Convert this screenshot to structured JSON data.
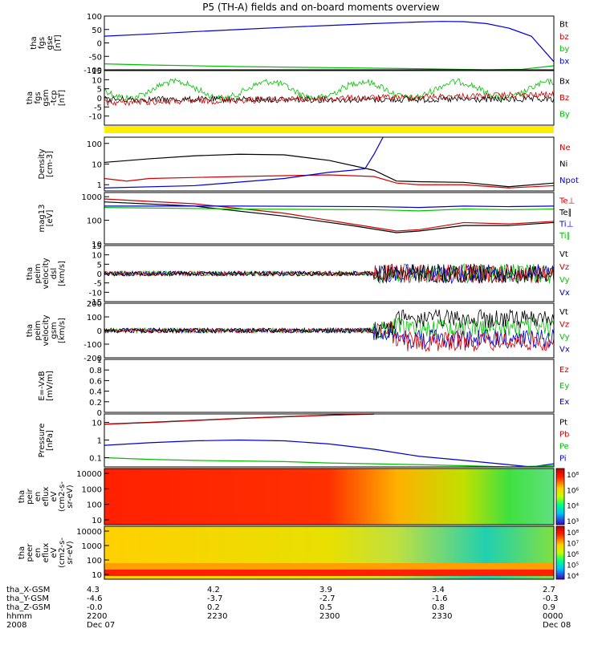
{
  "title": "P5 (TH-A) fields and on-board moments overview",
  "chart_data": [
    {
      "type": "line",
      "panel": "fgs-gse",
      "ylabel": [
        "tha",
        "fgs",
        "gse",
        "[nT]"
      ],
      "yticks": [
        100,
        50,
        0,
        -50,
        -100
      ],
      "ylim": [
        -100,
        100
      ],
      "legend": [
        {
          "name": "Bt",
          "color": "#000000"
        },
        {
          "name": "bz",
          "color": "#d00000"
        },
        {
          "name": "by",
          "color": "#00c000"
        },
        {
          "name": "bx",
          "color": "#0000d0"
        }
      ],
      "series": [
        {
          "name": "bx",
          "color": "#0000d0",
          "x": [
            0,
            0.1,
            0.2,
            0.3,
            0.4,
            0.5,
            0.6,
            0.7,
            0.75,
            0.8,
            0.85,
            0.9,
            0.95,
            1.0
          ],
          "values": [
            25,
            33,
            42,
            50,
            58,
            65,
            72,
            78,
            80,
            79,
            72,
            55,
            25,
            -70
          ]
        },
        {
          "name": "by",
          "color": "#00c000",
          "x": [
            0,
            0.1,
            0.3,
            0.5,
            0.7,
            0.85,
            0.93,
            1.0
          ],
          "values": [
            -78,
            -82,
            -88,
            -92,
            -96,
            -100,
            -98,
            -85
          ]
        }
      ]
    },
    {
      "type": "line",
      "panel": "fgs-gsm",
      "ylabel": [
        "tha",
        "fgs",
        "gsm",
        "-tcp",
        "[nT]"
      ],
      "yticks": [
        15,
        10,
        5,
        0,
        -5,
        -10
      ],
      "ylim": [
        -15,
        15
      ],
      "legend": [
        {
          "name": "Bx",
          "color": "#000000"
        },
        {
          "name": "Bz",
          "color": "#d00000"
        },
        {
          "name": "By",
          "color": "#00c000"
        }
      ]
    },
    {
      "type": "bar",
      "panel": "mode-bar",
      "color": "#ffee00"
    },
    {
      "type": "line",
      "panel": "density",
      "ylabel": [
        "Density",
        "[cm-3]"
      ],
      "yticks": [
        100,
        10,
        1
      ],
      "scale": "log",
      "ylim": [
        0.5,
        200
      ],
      "legend": [
        {
          "name": "Ne",
          "color": "#d00000"
        },
        {
          "name": "Ni",
          "color": "#000000"
        },
        {
          "name": "Npot",
          "color": "#0000d0"
        }
      ],
      "series": [
        {
          "name": "Ni",
          "color": "#000000",
          "x": [
            0,
            0.1,
            0.2,
            0.3,
            0.4,
            0.5,
            0.6,
            0.65,
            0.7,
            0.8,
            0.9,
            1.0
          ],
          "values": [
            12,
            18,
            25,
            30,
            28,
            15,
            5,
            1.5,
            1.4,
            1.3,
            0.8,
            1.2
          ]
        },
        {
          "name": "Ne",
          "color": "#d00000",
          "x": [
            0,
            0.05,
            0.1,
            0.3,
            0.5,
            0.6,
            0.65,
            0.7,
            0.8,
            0.9,
            1.0
          ],
          "values": [
            2,
            1.5,
            2,
            2.5,
            3,
            2.5,
            1.2,
            1.0,
            1.0,
            0.7,
            0.9
          ]
        },
        {
          "name": "Npot",
          "color": "#0000d0",
          "x": [
            0,
            0.2,
            0.4,
            0.5,
            0.55,
            0.58,
            0.6,
            0.62
          ],
          "values": [
            0.7,
            0.9,
            2,
            4,
            5,
            6,
            30,
            200
          ]
        }
      ]
    },
    {
      "type": "line",
      "panel": "temperature",
      "ylabel": [
        "mag13",
        "[eV]"
      ],
      "yticks": [
        1000,
        100,
        10
      ],
      "scale": "log",
      "ylim": [
        10,
        1500
      ],
      "legend": [
        {
          "name": "Te⊥",
          "color": "#d00000"
        },
        {
          "name": "Te∥",
          "color": "#000000"
        },
        {
          "name": "Ti⊥",
          "color": "#0000d0"
        },
        {
          "name": "Ti∥",
          "color": "#00c000"
        }
      ],
      "series": [
        {
          "name": "Te⊥",
          "color": "#d00000",
          "x": [
            0,
            0.2,
            0.4,
            0.55,
            0.65,
            0.7,
            0.8,
            0.9,
            1.0
          ],
          "values": [
            800,
            500,
            200,
            70,
            35,
            40,
            80,
            70,
            90
          ]
        },
        {
          "name": "Te∥",
          "color": "#000000",
          "x": [
            0,
            0.2,
            0.4,
            0.55,
            0.65,
            0.7,
            0.8,
            0.9,
            1.0
          ],
          "values": [
            600,
            400,
            150,
            60,
            30,
            35,
            60,
            60,
            80
          ]
        },
        {
          "name": "Ti⊥",
          "color": "#0000d0",
          "x": [
            0,
            0.3,
            0.6,
            0.7,
            0.8,
            0.9,
            1.0
          ],
          "values": [
            400,
            400,
            380,
            350,
            400,
            380,
            400
          ]
        },
        {
          "name": "Ti∥",
          "color": "#00c000",
          "x": [
            0,
            0.3,
            0.6,
            0.7,
            0.8,
            0.9,
            1.0
          ],
          "values": [
            350,
            300,
            280,
            250,
            300,
            280,
            300
          ]
        }
      ]
    },
    {
      "type": "line",
      "panel": "peim-dsl",
      "ylabel": [
        "tha",
        "peim",
        "velocity",
        "dsl",
        "[km/s]"
      ],
      "yticks": [
        15,
        10,
        5,
        0,
        -5,
        -10,
        -15
      ],
      "ylim": [
        -15,
        15
      ],
      "legend": [
        {
          "name": "Vt",
          "color": "#000000"
        },
        {
          "name": "Vz",
          "color": "#d00000"
        },
        {
          "name": "Vy",
          "color": "#00c000"
        },
        {
          "name": "Vx",
          "color": "#0000d0"
        }
      ]
    },
    {
      "type": "line",
      "panel": "peim-gsm",
      "ylabel": [
        "tha",
        "peim",
        "velocity",
        "gsm",
        "[km/s]"
      ],
      "yticks": [
        200,
        100,
        0,
        -100,
        -200
      ],
      "ylim": [
        -200,
        200
      ],
      "legend": [
        {
          "name": "Vt",
          "color": "#000000"
        },
        {
          "name": "Vz",
          "color": "#d00000"
        },
        {
          "name": "Vy",
          "color": "#00c000"
        },
        {
          "name": "Vx",
          "color": "#0000d0"
        }
      ]
    },
    {
      "type": "line",
      "panel": "efield",
      "ylabel": [
        "E=-VxB",
        "[mV/m]"
      ],
      "yticks": [
        1.0,
        0.8,
        0.6,
        0.4,
        0.2,
        0.0
      ],
      "ylim": [
        0,
        1
      ],
      "legend": [
        {
          "name": "Ez",
          "color": "#d00000"
        },
        {
          "name": "Ey",
          "color": "#00c000"
        },
        {
          "name": "Ex",
          "color": "#0000d0"
        }
      ]
    },
    {
      "type": "line",
      "panel": "pressure",
      "ylabel": [
        "Pressure",
        "[nPa]"
      ],
      "yticks": [
        10.0,
        1.0,
        0.1
      ],
      "scale": "log",
      "ylim": [
        0.03,
        30
      ],
      "legend": [
        {
          "name": "Pt",
          "color": "#000000"
        },
        {
          "name": "Pb",
          "color": "#d00000"
        },
        {
          "name": "Pe",
          "color": "#00c000"
        },
        {
          "name": "Pi",
          "color": "#0000d0"
        }
      ],
      "series": [
        {
          "name": "Pt",
          "color": "#000000",
          "x": [
            0,
            0.1,
            0.2,
            0.3,
            0.4,
            0.5,
            0.6
          ],
          "values": [
            8,
            10,
            13,
            17,
            21,
            26,
            30
          ]
        },
        {
          "name": "Pb",
          "color": "#d00000",
          "x": [
            0,
            0.1,
            0.2,
            0.3,
            0.4,
            0.5,
            0.6
          ],
          "values": [
            7.8,
            9.7,
            12.6,
            16.5,
            20.5,
            25.4,
            29.5
          ]
        },
        {
          "name": "Pi",
          "color": "#0000d0",
          "x": [
            0,
            0.1,
            0.2,
            0.3,
            0.4,
            0.5,
            0.6,
            0.7,
            0.8,
            0.9,
            0.95,
            1.0
          ],
          "values": [
            0.5,
            0.7,
            0.9,
            1.0,
            0.9,
            0.6,
            0.3,
            0.12,
            0.07,
            0.04,
            0.03,
            0.045
          ]
        },
        {
          "name": "Pe",
          "color": "#00c000",
          "x": [
            0,
            0.1,
            0.2,
            0.3,
            0.4,
            0.5,
            0.6,
            0.7,
            0.8,
            0.9,
            1.0
          ],
          "values": [
            0.1,
            0.08,
            0.07,
            0.065,
            0.06,
            0.05,
            0.045,
            0.04,
            0.035,
            0.03,
            0.035
          ]
        }
      ]
    },
    {
      "type": "heatmap",
      "panel": "peir-eflux",
      "ylabel": [
        "tha",
        "peir",
        "en",
        "eflux",
        "eV",
        "(cm2-s-",
        "sr-eV)"
      ],
      "yticks": [
        "10000",
        "1000",
        "100",
        "10"
      ],
      "colorbar_labels": [
        "10⁸",
        "10⁶",
        "10⁴",
        "10³"
      ],
      "ylim": [
        8,
        20000
      ],
      "scale": "log"
    },
    {
      "type": "heatmap",
      "panel": "peer-eflux",
      "ylabel": [
        "tha",
        "peer",
        "en",
        "eflux",
        "eV",
        "(cm2-s-",
        "sr-eV)"
      ],
      "yticks": [
        "10000",
        "1000",
        "100",
        "10"
      ],
      "colorbar_labels": [
        "10⁸",
        "10⁷",
        "10⁶",
        "10⁵",
        "10⁴"
      ],
      "ylim": [
        8,
        20000
      ],
      "scale": "log"
    }
  ],
  "xaxis": {
    "rows": [
      {
        "label": "tha_X-GSM",
        "values": [
          "4.3",
          "4.2",
          "3.9",
          "3.4",
          "2.7"
        ]
      },
      {
        "label": "tha_Y-GSM",
        "values": [
          "-4.6",
          "-3.7",
          "-2.7",
          "-1.6",
          "-0.3"
        ]
      },
      {
        "label": "tha_Z-GSM",
        "values": [
          "-0.0",
          "0.2",
          "0.5",
          "0.8",
          "0.9"
        ]
      },
      {
        "label": "hhmm",
        "values": [
          "2200",
          "2230",
          "2300",
          "2330",
          "0000"
        ]
      },
      {
        "label": "2008",
        "values": [
          "Dec 07",
          "",
          "",
          "",
          "Dec 08"
        ]
      }
    ]
  }
}
